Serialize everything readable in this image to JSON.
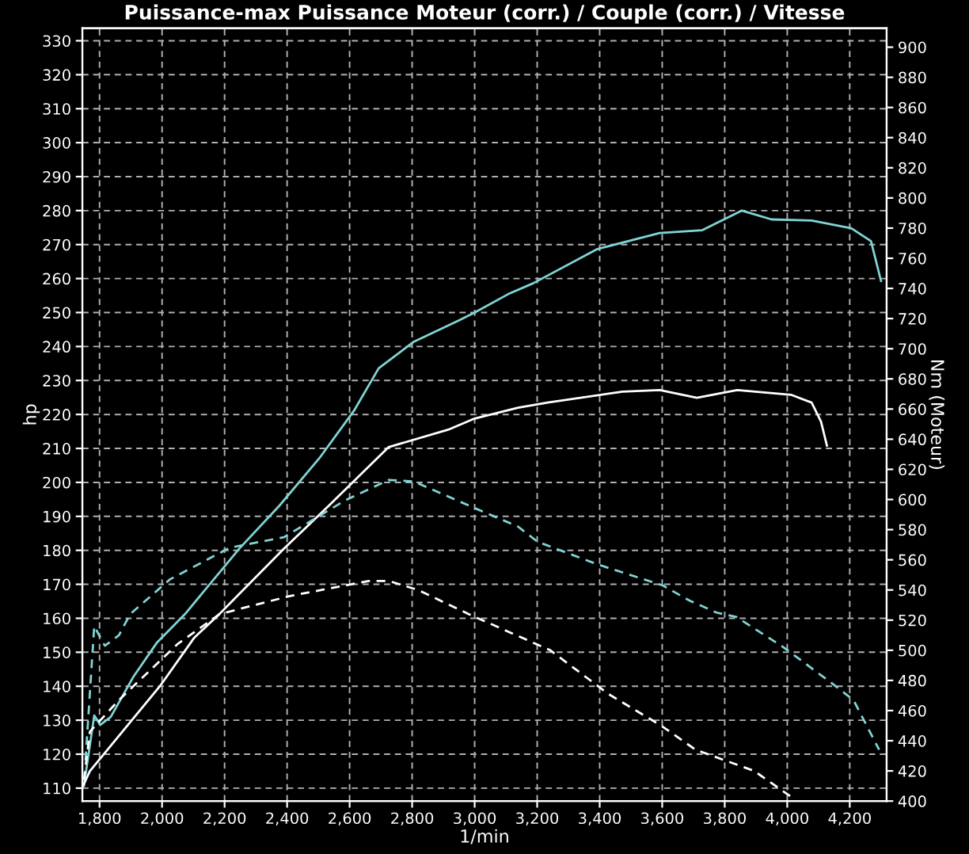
{
  "chart_data": {
    "type": "line",
    "title": "Puissance-max Puissance Moteur (corr.) / Couple (corr.) / Vitesse",
    "xlabel": "1/min",
    "ylabel": "hp",
    "y2label": "Nm (Moteur)",
    "xlim": [
      1745,
      4318
    ],
    "ylim": [
      106.2,
      333.7
    ],
    "y2lim": [
      400,
      912.6
    ],
    "xticks": [
      {
        "value": 1800,
        "label": "1,800"
      },
      {
        "value": 2000,
        "label": "2,000"
      },
      {
        "value": 2200,
        "label": "2,200"
      },
      {
        "value": 2400,
        "label": "2,400"
      },
      {
        "value": 2600,
        "label": "2,600"
      },
      {
        "value": 2800,
        "label": "2,800"
      },
      {
        "value": 3000,
        "label": "3,000"
      },
      {
        "value": 3200,
        "label": "3,200"
      },
      {
        "value": 3400,
        "label": "3,400"
      },
      {
        "value": 3600,
        "label": "3,600"
      },
      {
        "value": 3800,
        "label": "3,800"
      },
      {
        "value": 4000,
        "label": "4,000"
      },
      {
        "value": 4200,
        "label": "4,200"
      }
    ],
    "yticks": [
      110,
      120,
      130,
      140,
      150,
      160,
      170,
      180,
      190,
      200,
      210,
      220,
      230,
      240,
      250,
      260,
      270,
      280,
      290,
      300,
      310,
      320,
      330
    ],
    "y2ticks": [
      400,
      420,
      440,
      460,
      480,
      500,
      520,
      540,
      560,
      580,
      600,
      620,
      640,
      660,
      680,
      700,
      720,
      740,
      760,
      780,
      800,
      820,
      840,
      860,
      880,
      900
    ],
    "grid": true,
    "series": [
      {
        "color": "#80d4d4",
        "line_style": "solid",
        "x": [
          1750,
          1783,
          1802,
          1836,
          1907,
          1984,
          2073,
          2248,
          2375,
          2503,
          2614,
          2693,
          2805,
          2948,
          3000,
          3107,
          3187,
          3393,
          3592,
          3727,
          3855,
          3950,
          4078,
          4205,
          4268,
          4300
        ],
        "values": [
          110.7,
          131.4,
          128.6,
          131,
          142.6,
          152.9,
          161.2,
          180.6,
          193.1,
          207.1,
          221.1,
          233.6,
          241.4,
          247.6,
          250,
          255.4,
          258.6,
          268.7,
          273.4,
          274.2,
          280,
          277.4,
          277.1,
          274.8,
          271,
          259.3
        ]
      },
      {
        "color": "#ffffff",
        "line_style": "solid",
        "x": [
          1745,
          1769,
          1993,
          2103,
          2184,
          2390,
          2533,
          2725,
          2915,
          3000,
          3139,
          3234,
          3473,
          3592,
          3711,
          3840,
          4012,
          4078,
          4108,
          4127
        ],
        "values": [
          110.2,
          115,
          140,
          154.3,
          161.3,
          180.5,
          193.1,
          210.4,
          215.5,
          218.8,
          222,
          223.5,
          226.7,
          227.2,
          224.9,
          227.2,
          225.8,
          223.5,
          217.9,
          210.8
        ]
      },
      {
        "color": "#80d4d4",
        "line_style": "dashed",
        "axis": "y2",
        "x": [
          1755,
          1783,
          1817,
          1862,
          1898,
          2025,
          2216,
          2390,
          2582,
          2725,
          2805,
          2981,
          3139,
          3201,
          3393,
          3602,
          3687,
          3774,
          3838,
          3988,
          4137,
          4212,
          4294
        ],
        "values": [
          427,
          516,
          503,
          510,
          524,
          547,
          568,
          575,
          599,
          613,
          612,
          596,
          582,
          572,
          557,
          543,
          533,
          525,
          522,
          502,
          479,
          467,
          434
        ]
      },
      {
        "color": "#ffffff",
        "line_style": "dashed",
        "axis": "y2",
        "x": [
          1750,
          1769,
          1862,
          2049,
          2184,
          2409,
          2662,
          2725,
          2819,
          2981,
          3242,
          3428,
          3597,
          3707,
          3894,
          4025
        ],
        "values": [
          414,
          446,
          467,
          504,
          524,
          536,
          546,
          546,
          540,
          524,
          500,
          471,
          450,
          434,
          420,
          401
        ]
      }
    ]
  }
}
